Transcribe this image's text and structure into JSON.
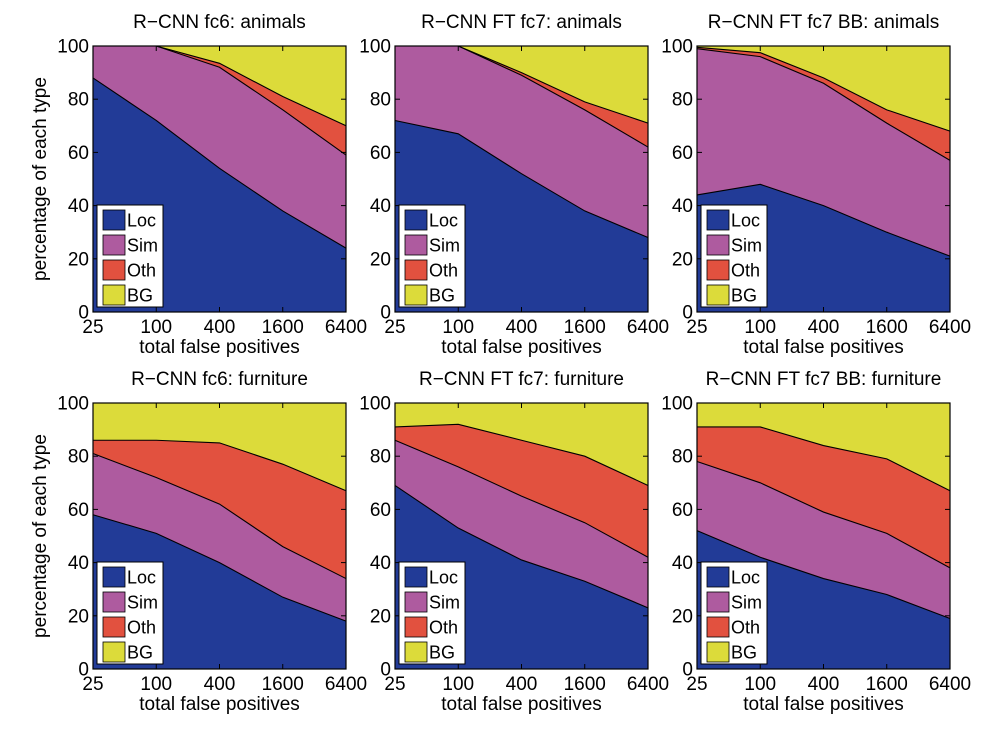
{
  "figure": {
    "ylabel": "percentage of each type",
    "xlabel": "total false positives"
  },
  "chart_data": [
    {
      "type": "area",
      "title": "R−CNN fc6: animals",
      "x": [
        "25",
        "100",
        "400",
        "1600",
        "6400"
      ],
      "xlabel": "total false positives",
      "ylabel": "percentage of each type",
      "ylim": [
        0,
        100
      ],
      "yticks": [
        "0",
        "20",
        "40",
        "60",
        "80",
        "100"
      ],
      "stacked": true,
      "legend": "bottom-left",
      "series": [
        {
          "name": "Loc",
          "color": "#223b97",
          "values": [
            88,
            72,
            54,
            38,
            24
          ]
        },
        {
          "name": "Sim",
          "color": "#ae5b9f",
          "values": [
            12,
            28,
            38,
            38,
            35
          ]
        },
        {
          "name": "Oth",
          "color": "#e2513f",
          "values": [
            0,
            0,
            1.5,
            5,
            11
          ]
        },
        {
          "name": "BG",
          "color": "#dcdb3a",
          "values": [
            0,
            0,
            6.5,
            19,
            30
          ]
        }
      ]
    },
    {
      "type": "area",
      "title": "R−CNN FT fc7: animals",
      "x": [
        "25",
        "100",
        "400",
        "1600",
        "6400"
      ],
      "xlabel": "total false positives",
      "ylabel": "percentage of each type",
      "ylim": [
        0,
        100
      ],
      "yticks": [
        "0",
        "20",
        "40",
        "60",
        "80",
        "100"
      ],
      "stacked": true,
      "legend": "bottom-left",
      "series": [
        {
          "name": "Loc",
          "color": "#223b97",
          "values": [
            72,
            67,
            52,
            38,
            28
          ]
        },
        {
          "name": "Sim",
          "color": "#ae5b9f",
          "values": [
            28,
            33,
            37,
            38,
            34
          ]
        },
        {
          "name": "Oth",
          "color": "#e2513f",
          "values": [
            0,
            0,
            1,
            3,
            9
          ]
        },
        {
          "name": "BG",
          "color": "#dcdb3a",
          "values": [
            0,
            0,
            10,
            21,
            29
          ]
        }
      ]
    },
    {
      "type": "area",
      "title": "R−CNN FT fc7 BB: animals",
      "x": [
        "25",
        "100",
        "400",
        "1600",
        "6400"
      ],
      "xlabel": "total false positives",
      "ylabel": "percentage of each type",
      "ylim": [
        0,
        100
      ],
      "yticks": [
        "0",
        "20",
        "40",
        "60",
        "80",
        "100"
      ],
      "stacked": true,
      "legend": "bottom-left",
      "series": [
        {
          "name": "Loc",
          "color": "#223b97",
          "values": [
            44,
            48,
            40,
            30,
            21
          ]
        },
        {
          "name": "Sim",
          "color": "#ae5b9f",
          "values": [
            55,
            48,
            46,
            41,
            36
          ]
        },
        {
          "name": "Oth",
          "color": "#e2513f",
          "values": [
            0.5,
            1.5,
            2,
            5,
            11
          ]
        },
        {
          "name": "BG",
          "color": "#dcdb3a",
          "values": [
            0.5,
            2.5,
            12,
            24,
            32
          ]
        }
      ]
    },
    {
      "type": "area",
      "title": "R−CNN fc6: furniture",
      "x": [
        "25",
        "100",
        "400",
        "1600",
        "6400"
      ],
      "xlabel": "total false positives",
      "ylabel": "percentage of each type",
      "ylim": [
        0,
        100
      ],
      "yticks": [
        "0",
        "20",
        "40",
        "60",
        "80",
        "100"
      ],
      "stacked": true,
      "legend": "bottom-left",
      "series": [
        {
          "name": "Loc",
          "color": "#223b97",
          "values": [
            58,
            51,
            40,
            27,
            18
          ]
        },
        {
          "name": "Sim",
          "color": "#ae5b9f",
          "values": [
            23,
            21,
            22,
            19,
            16
          ]
        },
        {
          "name": "Oth",
          "color": "#e2513f",
          "values": [
            5,
            14,
            23,
            31,
            33
          ]
        },
        {
          "name": "BG",
          "color": "#dcdb3a",
          "values": [
            14,
            14,
            15,
            23,
            33
          ]
        }
      ]
    },
    {
      "type": "area",
      "title": "R−CNN FT fc7: furniture",
      "x": [
        "25",
        "100",
        "400",
        "1600",
        "6400"
      ],
      "xlabel": "total false positives",
      "ylabel": "percentage of each type",
      "ylim": [
        0,
        100
      ],
      "yticks": [
        "0",
        "20",
        "40",
        "60",
        "80",
        "100"
      ],
      "stacked": true,
      "legend": "bottom-left",
      "series": [
        {
          "name": "Loc",
          "color": "#223b97",
          "values": [
            69,
            53,
            41,
            33,
            23
          ]
        },
        {
          "name": "Sim",
          "color": "#ae5b9f",
          "values": [
            17,
            23,
            24,
            22,
            19
          ]
        },
        {
          "name": "Oth",
          "color": "#e2513f",
          "values": [
            5,
            16,
            21,
            25,
            27
          ]
        },
        {
          "name": "BG",
          "color": "#dcdb3a",
          "values": [
            9,
            8,
            14,
            20,
            31
          ]
        }
      ]
    },
    {
      "type": "area",
      "title": "R−CNN FT fc7 BB: furniture",
      "x": [
        "25",
        "100",
        "400",
        "1600",
        "6400"
      ],
      "xlabel": "total false positives",
      "ylabel": "percentage of each type",
      "ylim": [
        0,
        100
      ],
      "yticks": [
        "0",
        "20",
        "40",
        "60",
        "80",
        "100"
      ],
      "stacked": true,
      "legend": "bottom-left",
      "series": [
        {
          "name": "Loc",
          "color": "#223b97",
          "values": [
            52,
            42,
            34,
            28,
            19
          ]
        },
        {
          "name": "Sim",
          "color": "#ae5b9f",
          "values": [
            26,
            28,
            25,
            23,
            19
          ]
        },
        {
          "name": "Oth",
          "color": "#e2513f",
          "values": [
            13,
            21,
            25,
            28,
            29
          ]
        },
        {
          "name": "BG",
          "color": "#dcdb3a",
          "values": [
            9,
            9,
            16,
            21,
            33
          ]
        }
      ]
    }
  ]
}
